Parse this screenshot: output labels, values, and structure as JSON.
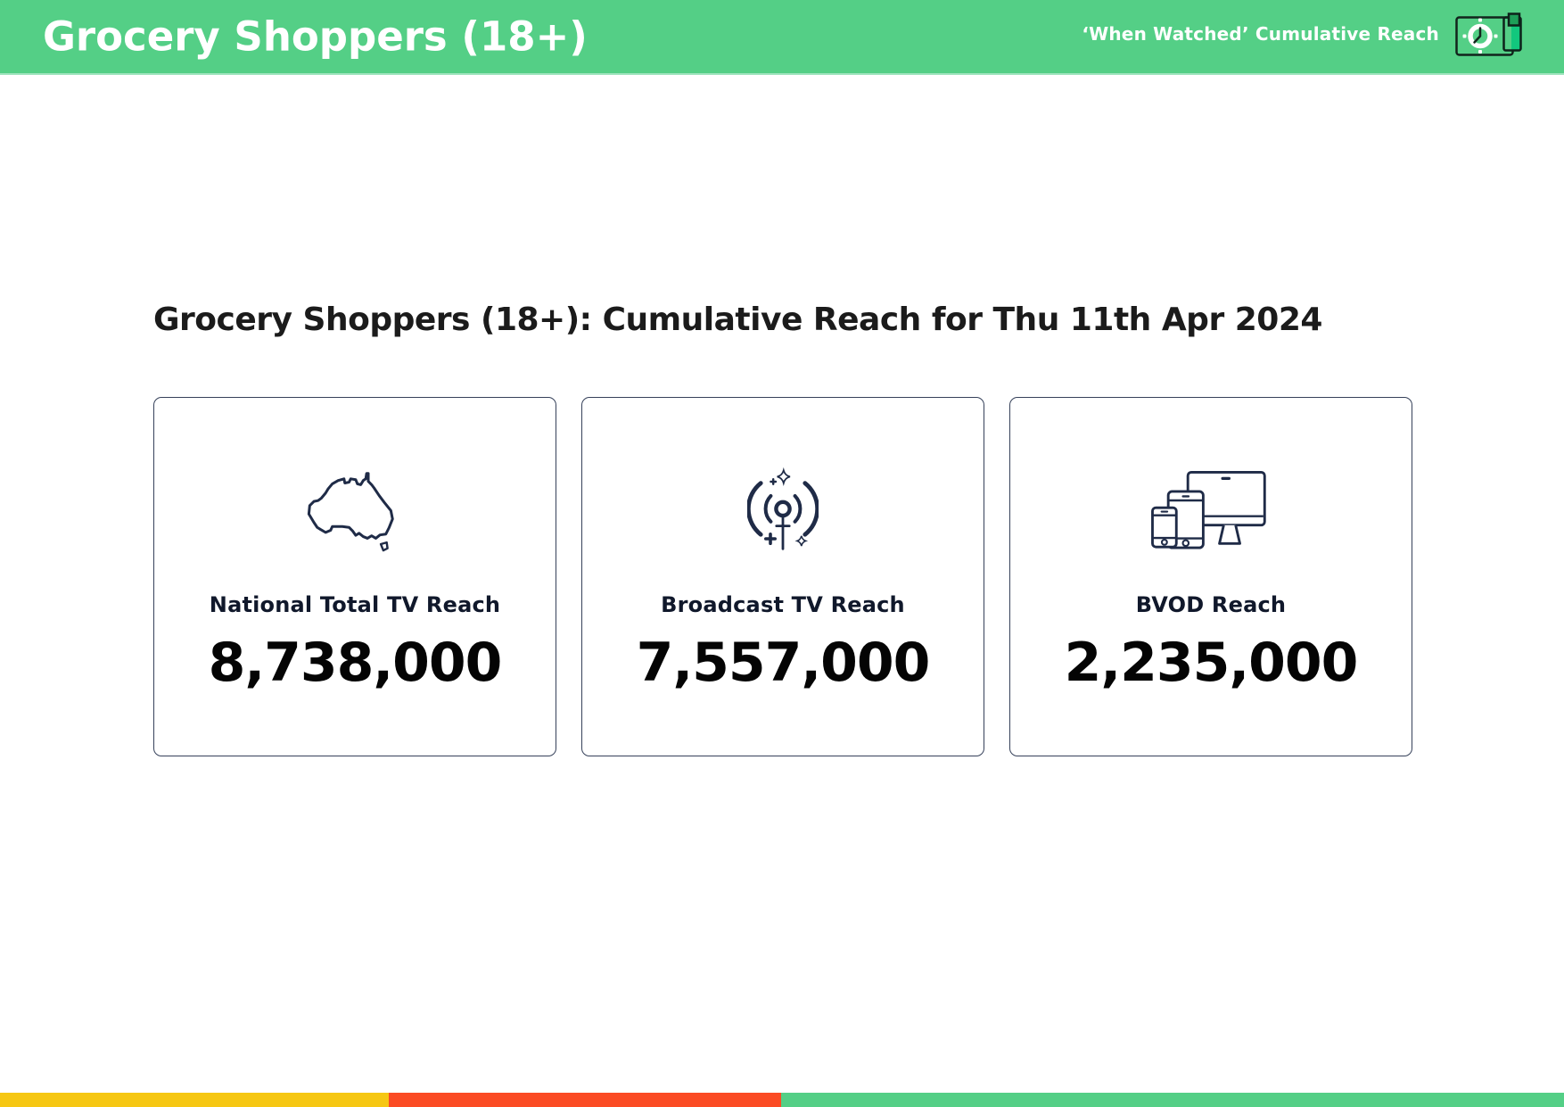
{
  "header": {
    "title": "Grocery Shoppers (18+)",
    "subtitle": "‘When Watched’ Cumulative Reach",
    "bg_color": "#54CF86",
    "icons": [
      {
        "name": "clock-icon"
      },
      {
        "name": "battery-icon"
      }
    ]
  },
  "main": {
    "heading": "Grocery Shoppers (18+): Cumulative Reach for Thu 11th Apr 2024",
    "cards": [
      {
        "icon": "australia-map-icon",
        "label": "National Total TV Reach",
        "value": "8,738,000"
      },
      {
        "icon": "broadcast-icon",
        "label": "Broadcast TV Reach",
        "value": "7,557,000"
      },
      {
        "icon": "devices-icon",
        "label": "BVOD Reach",
        "value": "2,235,000"
      }
    ]
  },
  "footer": {
    "segments": [
      {
        "name": "yellow-segment",
        "color": "#F6C713",
        "width_pct": 24.86
      },
      {
        "name": "red-segment",
        "color": "#FB4B24",
        "width_pct": 25.08
      },
      {
        "name": "green-segment",
        "color": "#54CF86",
        "width_pct": 50.06
      }
    ]
  },
  "colors": {
    "icon_stroke": "#1F2B47",
    "accent_green": "#54CF86",
    "battery_fill": "#12C77D",
    "battery_cap": "#1E9E58"
  }
}
